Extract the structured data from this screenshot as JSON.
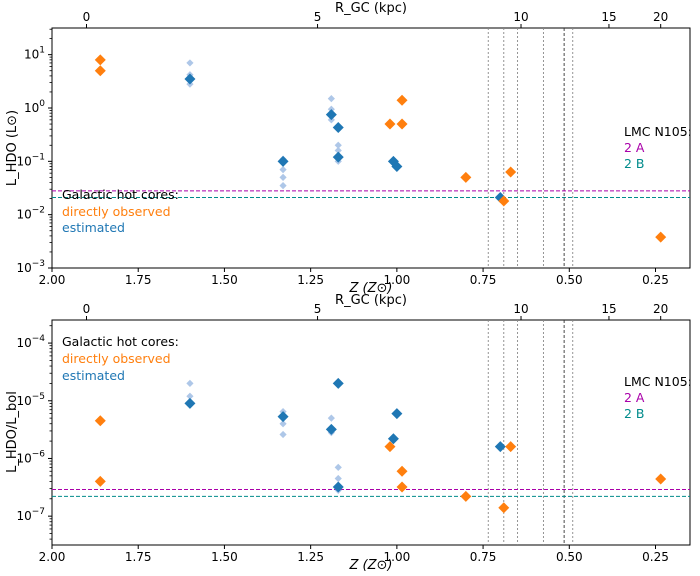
{
  "colors": {
    "observed": "#ff7f0e",
    "estimated": "#1f77b4",
    "estimated_light": "#aec7e8",
    "lmc_2a": "#aa00aa",
    "lmc_2b": "#008b8b"
  },
  "chart_data": [
    {
      "type": "scatter",
      "id": "top",
      "xlabel": "Z (Z⊙)",
      "ylabel": "L_HDO (L⊙)",
      "top_xlabel": "R_GC (kpc)",
      "xlim": [
        2.0,
        0.15
      ],
      "ylim_log10": [
        -3,
        1.5
      ],
      "x_ticks": [
        "2.00",
        "1.75",
        "1.50",
        "1.25",
        "1.00",
        "0.75",
        "0.50",
        "0.25"
      ],
      "x_tick_values": [
        2.0,
        1.75,
        1.5,
        1.25,
        1.0,
        0.75,
        0.5,
        0.25
      ],
      "y_ticks": [
        "10^-3",
        "10^-2",
        "10^-1",
        "10^0",
        "10^1"
      ],
      "y_tick_exps": [
        -3,
        -2,
        -1,
        0,
        1
      ],
      "top_ticks": [
        "0",
        "5",
        "10",
        "15",
        "20"
      ],
      "top_tick_z": [
        1.9,
        1.23,
        0.64,
        0.385,
        0.235
      ],
      "legend_title": "Galactic hot cores:",
      "legend_observed": "directly observed",
      "legend_estimated": "estimated",
      "lmc_title": "LMC N105:",
      "lmc_2a": "2 A",
      "lmc_2b": "2 B",
      "lmc_2a_value": 0.028,
      "lmc_2b_value": 0.021,
      "observed": [
        {
          "z": 1.86,
          "y": 8.0
        },
        {
          "z": 1.86,
          "y": 5.0
        },
        {
          "z": 1.02,
          "y": 0.5
        },
        {
          "z": 0.985,
          "y": 1.4
        },
        {
          "z": 0.985,
          "y": 0.5
        },
        {
          "z": 0.8,
          "y": 0.05
        },
        {
          "z": 0.69,
          "y": 0.018
        },
        {
          "z": 0.67,
          "y": 0.063
        },
        {
          "z": 0.235,
          "y": 0.0038
        }
      ],
      "estimated": [
        {
          "z": 1.6,
          "y": 3.5
        },
        {
          "z": 1.33,
          "y": 0.1
        },
        {
          "z": 1.19,
          "y": 0.75
        },
        {
          "z": 1.17,
          "y": 0.43
        },
        {
          "z": 1.17,
          "y": 0.12
        },
        {
          "z": 1.01,
          "y": 0.1
        },
        {
          "z": 1.0,
          "y": 0.08
        },
        {
          "z": 0.7,
          "y": 0.021
        }
      ],
      "estimated_range": [
        {
          "z": 1.6,
          "y": [
            2.8,
            3.4,
            4.2,
            7.0
          ]
        },
        {
          "z": 1.33,
          "y": [
            0.035,
            0.05,
            0.07,
            0.11
          ]
        },
        {
          "z": 1.19,
          "y": [
            1.5,
            0.95,
            0.6
          ]
        },
        {
          "z": 1.17,
          "y": [
            0.2,
            0.16,
            0.1
          ]
        }
      ]
    },
    {
      "type": "scatter",
      "id": "bottom",
      "xlabel": "Z (Z⊙)",
      "ylabel": "L_HDO/L_bol",
      "top_xlabel": "R_GC (kpc)",
      "xlim": [
        2.0,
        0.15
      ],
      "ylim_log10": [
        -7.5,
        -3.6
      ],
      "x_ticks": [
        "2.00",
        "1.75",
        "1.50",
        "1.25",
        "1.00",
        "0.75",
        "0.50",
        "0.25"
      ],
      "x_tick_values": [
        2.0,
        1.75,
        1.5,
        1.25,
        1.0,
        0.75,
        0.5,
        0.25
      ],
      "y_ticks": [
        "10^-7",
        "10^-6",
        "10^-5",
        "10^-4"
      ],
      "y_tick_exps": [
        -7,
        -6,
        -5,
        -4
      ],
      "top_ticks": [
        "0",
        "5",
        "10",
        "15",
        "20"
      ],
      "top_tick_z": [
        1.9,
        1.23,
        0.64,
        0.385,
        0.235
      ],
      "legend_title": "Galactic hot cores:",
      "legend_observed": "directly observed",
      "legend_estimated": "estimated",
      "lmc_title": "LMC N105:",
      "lmc_2a": "2 A",
      "lmc_2b": "2 B",
      "lmc_2a_value": 2.9e-07,
      "lmc_2b_value": 2.2e-07,
      "observed": [
        {
          "z": 1.86,
          "y": 4.5e-06
        },
        {
          "z": 1.86,
          "y": 4e-07
        },
        {
          "z": 1.02,
          "y": 1.6e-06
        },
        {
          "z": 0.985,
          "y": 6e-07
        },
        {
          "z": 0.985,
          "y": 3.2e-07
        },
        {
          "z": 0.8,
          "y": 2.2e-07
        },
        {
          "z": 0.69,
          "y": 1.4e-07
        },
        {
          "z": 0.67,
          "y": 1.6e-06
        },
        {
          "z": 0.235,
          "y": 4.4e-07
        }
      ],
      "estimated": [
        {
          "z": 1.6,
          "y": 9e-06
        },
        {
          "z": 1.33,
          "y": 5.3e-06
        },
        {
          "z": 1.19,
          "y": 3.2e-06
        },
        {
          "z": 1.17,
          "y": 2e-05
        },
        {
          "z": 1.17,
          "y": 3.2e-07
        },
        {
          "z": 1.01,
          "y": 2.2e-06
        },
        {
          "z": 1.0,
          "y": 6e-06
        },
        {
          "z": 0.7,
          "y": 1.6e-06
        }
      ],
      "estimated_range": [
        {
          "z": 1.6,
          "y": [
            2e-05,
            1.2e-05,
            8.5e-06
          ]
        },
        {
          "z": 1.33,
          "y": [
            6.5e-06,
            4e-06,
            2.6e-06
          ]
        },
        {
          "z": 1.19,
          "y": [
            5e-06,
            2.8e-06
          ]
        },
        {
          "z": 1.17,
          "y": [
            7e-07,
            4.5e-07,
            2.8e-07
          ]
        }
      ]
    }
  ]
}
